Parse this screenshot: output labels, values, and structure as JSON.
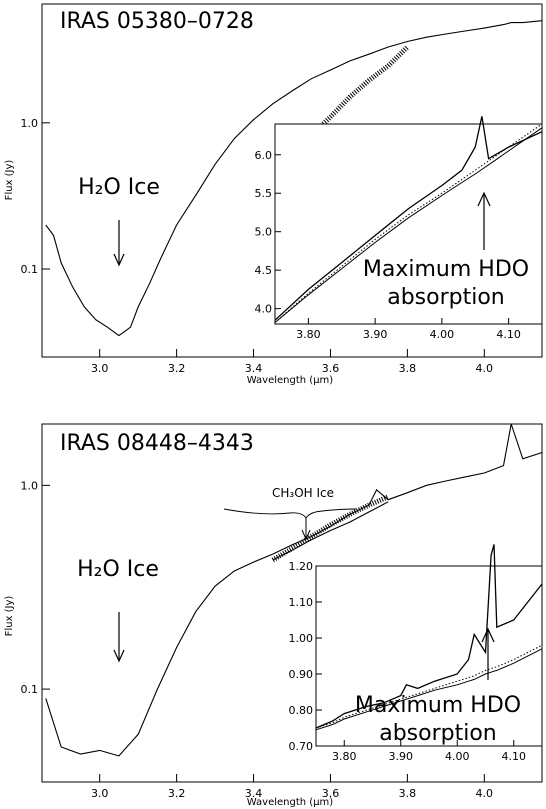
{
  "chart_data": [
    {
      "type": "line",
      "title": "IRAS 05380–0728",
      "xlabel": "Wavelength (μm)",
      "ylabel": "Flux (Jy)",
      "yscale": "log",
      "xlim": [
        2.85,
        4.15
      ],
      "ylim": [
        0.025,
        6.5
      ],
      "xticks": [
        "3.0",
        "3.2",
        "3.4",
        "3.6",
        "3.8",
        "4.0"
      ],
      "yticks": [
        "0.1",
        "1.0"
      ],
      "annotations": [
        {
          "text": "H₂O Ice"
        }
      ],
      "x": [
        2.86,
        2.88,
        2.9,
        2.93,
        2.96,
        2.99,
        3.02,
        3.05,
        3.08,
        3.1,
        3.13,
        3.16,
        3.2,
        3.25,
        3.3,
        3.35,
        3.4,
        3.45,
        3.5,
        3.55,
        3.6,
        3.65,
        3.7,
        3.75,
        3.8,
        3.85,
        3.9,
        3.95,
        4.0,
        4.05,
        4.07,
        4.1,
        4.15
      ],
      "series": [
        {
          "values": [
            0.2,
            0.17,
            0.11,
            0.075,
            0.055,
            0.045,
            0.04,
            0.035,
            0.04,
            0.055,
            0.08,
            0.12,
            0.2,
            0.32,
            0.52,
            0.78,
            1.05,
            1.35,
            1.65,
            2.0,
            2.3,
            2.65,
            2.95,
            3.3,
            3.6,
            3.85,
            4.05,
            4.25,
            4.45,
            4.7,
            4.85,
            4.85,
            5.0
          ]
        },
        {
          "values": [
            0.48,
            0.6,
            0.82,
            1.1,
            1.5,
            1.95,
            2.45,
            3.3
          ],
          "x": [
            3.47,
            3.5,
            3.55,
            3.6,
            3.65,
            3.7,
            3.75,
            3.8
          ],
          "style": "hatched"
        }
      ],
      "inset": {
        "xlim": [
          3.75,
          4.15
        ],
        "ylim": [
          3.8,
          6.4
        ],
        "xticks": [
          "3.80",
          "3.90",
          "4.00",
          "4.10"
        ],
        "yticks": [
          "4.0",
          "4.5",
          "5.0",
          "5.5",
          "6.0"
        ],
        "annotations": [
          {
            "text": "Maximum HDO"
          },
          {
            "text": "absorption"
          }
        ],
        "x": [
          3.75,
          3.8,
          3.85,
          3.9,
          3.95,
          4.0,
          4.03,
          4.05,
          4.06,
          4.07,
          4.08,
          4.1,
          4.15
        ],
        "series": [
          {
            "values": [
              3.85,
              4.25,
              4.6,
              4.95,
              5.3,
              5.6,
              5.8,
              6.1,
              6.5,
              5.95,
              6.0,
              6.1,
              6.3
            ]
          },
          {
            "values": [
              3.82,
              4.2,
              4.55,
              4.9,
              5.22,
              5.5,
              5.68,
              5.8,
              5.86,
              5.92,
              5.98,
              6.1,
              6.4
            ],
            "style": "dotted"
          },
          {
            "values": [
              3.82,
              4.18,
              4.52,
              4.86,
              5.18,
              5.47,
              5.64,
              5.75,
              5.81,
              5.87,
              5.93,
              6.05,
              6.35
            ]
          }
        ]
      }
    },
    {
      "type": "line",
      "title": "IRAS 08448–4343",
      "xlabel": "Wavelength (μm)",
      "ylabel": "Flux (Jy)",
      "yscale": "log",
      "xlim": [
        2.85,
        4.15
      ],
      "ylim": [
        0.035,
        2.0
      ],
      "xticks": [
        "3.0",
        "3.2",
        "3.4",
        "3.6",
        "3.8",
        "4.0"
      ],
      "yticks": [
        "0.1",
        "1.0"
      ],
      "annotations": [
        {
          "text": "H₂O Ice"
        },
        {
          "text": "CH₃OH Ice"
        }
      ],
      "x": [
        2.86,
        2.9,
        2.95,
        3.0,
        3.05,
        3.1,
        3.15,
        3.2,
        3.25,
        3.3,
        3.35,
        3.4,
        3.45,
        3.5,
        3.55,
        3.6,
        3.65,
        3.7,
        3.72,
        3.75,
        3.8,
        3.85,
        3.9,
        3.95,
        4.0,
        4.05,
        4.07,
        4.1,
        4.15
      ],
      "series": [
        {
          "values": [
            0.09,
            0.052,
            0.048,
            0.05,
            0.047,
            0.06,
            0.1,
            0.16,
            0.24,
            0.32,
            0.38,
            0.42,
            0.46,
            0.51,
            0.56,
            0.63,
            0.72,
            0.8,
            0.95,
            0.85,
            0.92,
            1.0,
            1.05,
            1.1,
            1.15,
            1.25,
            2.0,
            1.35,
            1.45
          ]
        },
        {
          "values": [
            0.43,
            0.48,
            0.54,
            0.6,
            0.66,
            0.74,
            0.83
          ],
          "x": [
            3.45,
            3.5,
            3.55,
            3.6,
            3.65,
            3.7,
            3.75
          ]
        },
        {
          "values": [
            0.43,
            0.49,
            0.56,
            0.64,
            0.72,
            0.8,
            0.88
          ],
          "x": [
            3.45,
            3.5,
            3.55,
            3.6,
            3.65,
            3.7,
            3.75
          ],
          "style": "hatched"
        }
      ],
      "inset": {
        "xlim": [
          3.75,
          4.15
        ],
        "ylim": [
          0.7,
          1.2
        ],
        "xticks": [
          "3.80",
          "3.90",
          "4.00",
          "4.10"
        ],
        "yticks": [
          "0.70",
          "0.80",
          "0.90",
          "1.00",
          "1.10",
          "1.20"
        ],
        "annotations": [
          {
            "text": "Maximum HDO"
          },
          {
            "text": "absorption"
          }
        ],
        "x": [
          3.75,
          3.78,
          3.8,
          3.84,
          3.87,
          3.9,
          3.91,
          3.93,
          3.96,
          4.0,
          4.02,
          4.03,
          4.05,
          4.06,
          4.065,
          4.07,
          4.1,
          4.15
        ],
        "series": [
          {
            "values": [
              0.75,
              0.77,
              0.79,
              0.81,
              0.82,
              0.84,
              0.87,
              0.86,
              0.88,
              0.9,
              0.94,
              1.01,
              0.96,
              1.23,
              1.26,
              1.03,
              1.05,
              1.15
            ]
          },
          {
            "values": [
              0.75,
              0.765,
              0.78,
              0.8,
              0.815,
              0.83,
              0.835,
              0.845,
              0.86,
              0.88,
              0.89,
              0.895,
              0.91,
              0.915,
              0.918,
              0.92,
              0.94,
              0.98
            ],
            "style": "dotted"
          },
          {
            "values": [
              0.745,
              0.76,
              0.775,
              0.795,
              0.81,
              0.825,
              0.83,
              0.84,
              0.855,
              0.87,
              0.88,
              0.885,
              0.9,
              0.905,
              0.908,
              0.91,
              0.93,
              0.97
            ]
          }
        ]
      }
    }
  ]
}
